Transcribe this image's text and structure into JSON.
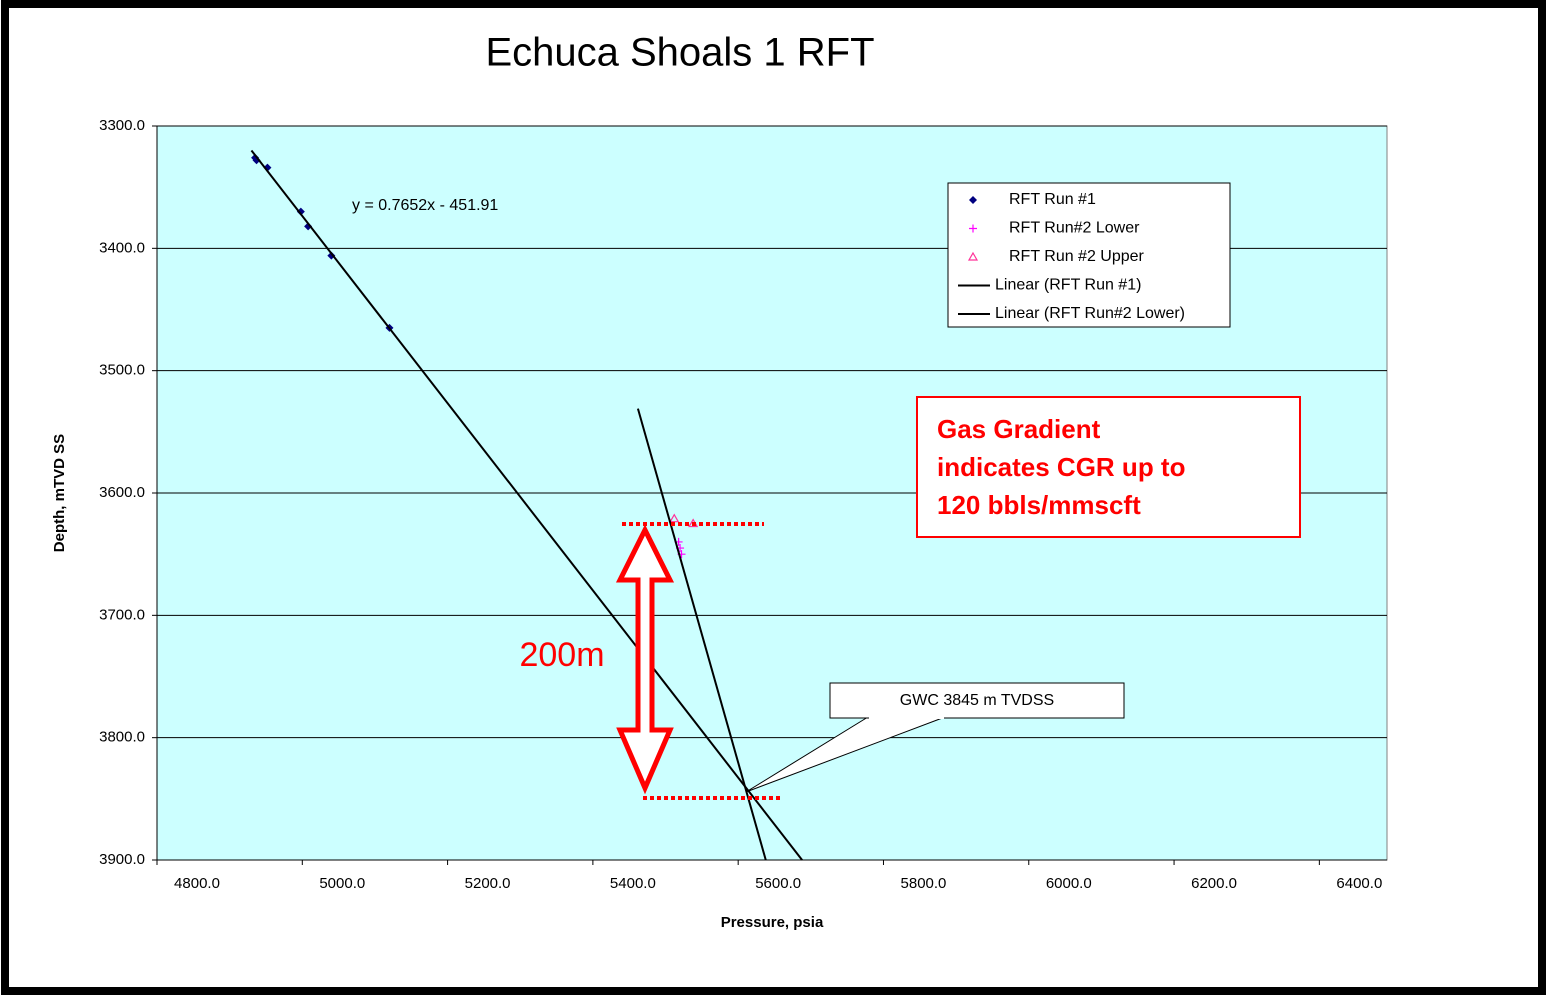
{
  "chart_data": {
    "type": "scatter",
    "title": "Echuca Shoals 1 RFT",
    "xlabel": "Pressure, psia",
    "ylabel": "Depth, mTVD SS",
    "xlim": [
      4800,
      6500
    ],
    "ylim": [
      3300,
      3900
    ],
    "y_inverted": true,
    "xticks": [
      {
        "value": 4800,
        "label": "4800.0"
      },
      {
        "value": 5000,
        "label": "5000.0"
      },
      {
        "value": 5200,
        "label": "5200.0"
      },
      {
        "value": 5400,
        "label": "5400.0"
      },
      {
        "value": 5600,
        "label": "5600.0"
      },
      {
        "value": 5800,
        "label": "5800.0"
      },
      {
        "value": 6000,
        "label": "6000.0"
      },
      {
        "value": 6200,
        "label": "6200.0"
      },
      {
        "value": 6400,
        "label": "6400.0"
      }
    ],
    "yticks": [
      {
        "value": 3300,
        "label": "3300.0"
      },
      {
        "value": 3400,
        "label": "3400.0"
      },
      {
        "value": 3500,
        "label": "3500.0"
      },
      {
        "value": 3600,
        "label": "3600.0"
      },
      {
        "value": 3700,
        "label": "3700.0"
      },
      {
        "value": 3800,
        "label": "3800.0"
      },
      {
        "value": 3900,
        "label": "3900.0"
      }
    ],
    "grid": true,
    "background": "#ccffff",
    "series": [
      {
        "name": "RFT Run #1",
        "marker": "diamond",
        "color": "#000080",
        "x": [
          4935,
          4937,
          4952,
          4998,
          5008,
          5040,
          5120
        ],
        "values": [
          3326,
          3328,
          3334,
          3370,
          3382,
          3406,
          3465
        ]
      },
      {
        "name": "RFT Run#2 Lower",
        "marker": "plus",
        "color": "#ff00ff",
        "x": [
          5518,
          5520,
          5522
        ],
        "values": [
          3640,
          3645,
          3650
        ]
      },
      {
        "name": "RFT Run #2 Upper",
        "marker": "triangle",
        "color": "#ff3399",
        "x": [
          5512,
          5538
        ],
        "values": [
          3621,
          3625
        ]
      },
      {
        "name": "Linear (RFT Run #1)",
        "marker": "line",
        "color": "#000000",
        "x": [
          4930,
          5688
        ],
        "values": [
          3320,
          3900
        ]
      },
      {
        "name": "Linear (RFT Run#2 Lower)",
        "marker": "line",
        "color": "#000000",
        "x": [
          5462,
          5638
        ],
        "values": [
          3531,
          3900
        ]
      }
    ],
    "annotations": {
      "equation": "y = 0.7652x - 451.91",
      "gas_gradient": [
        "Gas Gradient",
        "indicates CGR up to",
        "120 bbls/mmscft"
      ],
      "interval": "200m",
      "gwc": "GWC 3845 m TVDSS"
    }
  }
}
